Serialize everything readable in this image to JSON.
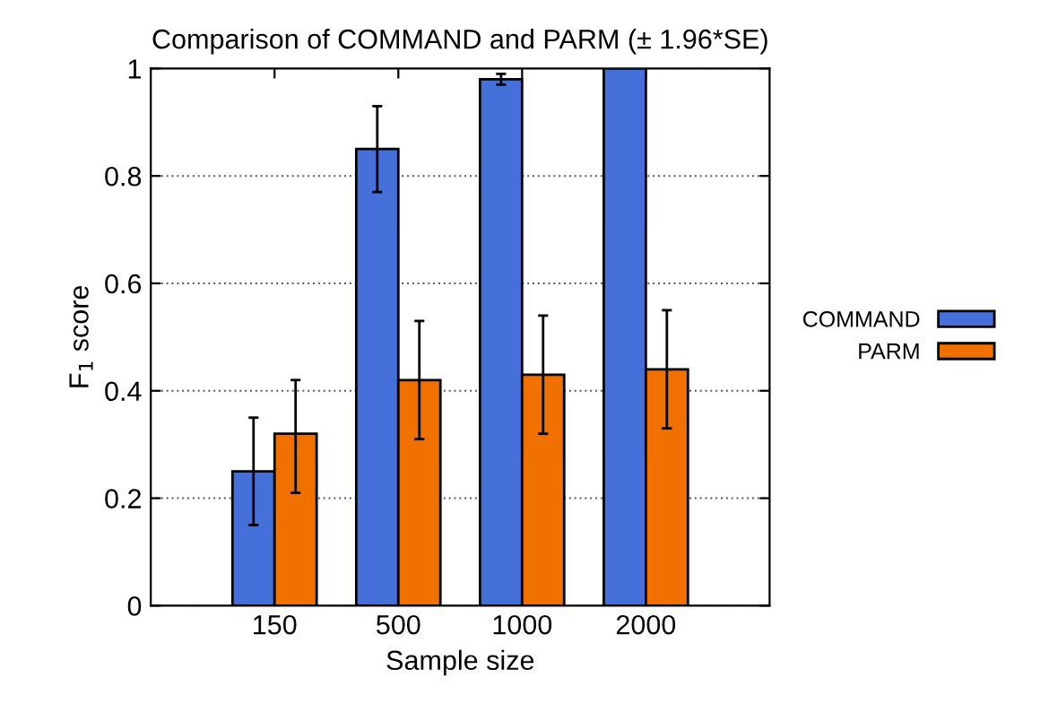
{
  "chart_data": {
    "type": "bar",
    "title": "Comparison of COMMAND and PARM (± 1.96*SE)",
    "xlabel": "Sample size",
    "ylabel": "F$_{1}$ score",
    "categories": [
      "150",
      "500",
      "1000",
      "2000"
    ],
    "series": [
      {
        "name": "COMMAND",
        "color": "#4570d9",
        "values": [
          0.25,
          0.85,
          0.98,
          1.0
        ],
        "errors": [
          [
            0.15,
            0.35
          ],
          [
            0.77,
            0.93
          ],
          [
            0.97,
            0.99
          ],
          null
        ]
      },
      {
        "name": "PARM",
        "color": "#f07000",
        "values": [
          0.32,
          0.42,
          0.43,
          0.44
        ],
        "errors": [
          [
            0.21,
            0.42
          ],
          [
            0.31,
            0.53
          ],
          [
            0.32,
            0.54
          ],
          [
            0.33,
            0.55
          ]
        ]
      }
    ],
    "ylim": [
      0,
      1
    ],
    "yticks": [
      0,
      0.2,
      0.4,
      0.6,
      0.8,
      1
    ],
    "grid": "y",
    "legend": "right"
  }
}
